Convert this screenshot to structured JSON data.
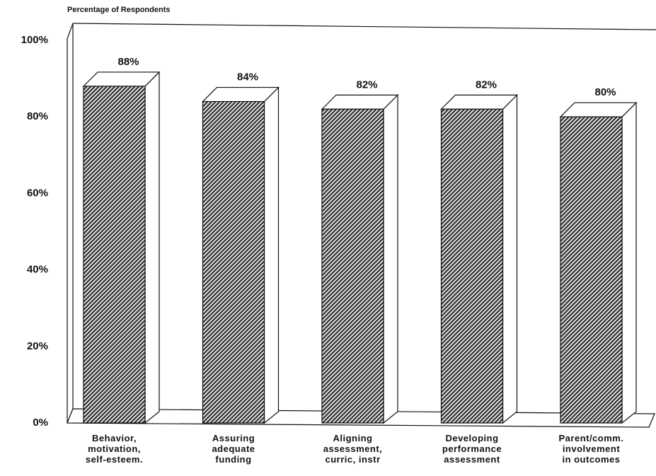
{
  "chart_data": {
    "type": "bar3d",
    "y_label": "Percentage of Respondents",
    "categories": [
      "Behavior,\nmotivation,\nself-esteem.",
      "Assuring\nadequate\nfunding",
      "Aligning\nassessment,\ncurric, instr",
      "Developing\nperformance\nassessment",
      "Parent/comm.\ninvolvement\nin outcomes"
    ],
    "values": [
      88,
      84,
      82,
      82,
      80
    ],
    "value_labels": [
      "88%",
      "84%",
      "82%",
      "82%",
      "80%"
    ],
    "ylim": [
      0,
      100
    ],
    "yticks": [
      {
        "value": 0,
        "label": "0%"
      },
      {
        "value": 20,
        "label": "20%"
      },
      {
        "value": 40,
        "label": "40%"
      },
      {
        "value": 60,
        "label": "60%"
      },
      {
        "value": 80,
        "label": "80%"
      },
      {
        "value": 100,
        "label": "100%"
      }
    ],
    "grid": false,
    "color": "#333333"
  }
}
